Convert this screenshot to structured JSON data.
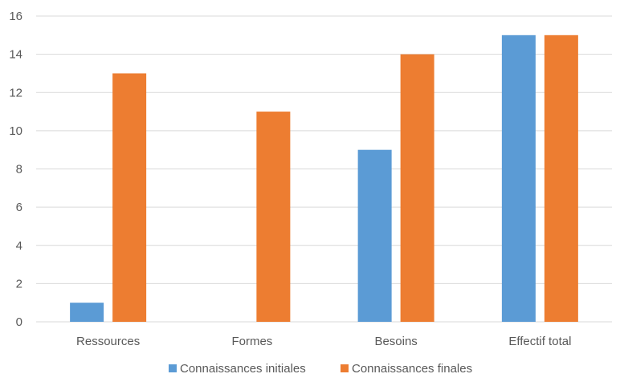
{
  "chart_data": {
    "type": "bar",
    "title": "",
    "xlabel": "",
    "ylabel": "",
    "categories": [
      "Ressources",
      "Formes",
      "Besoins",
      "Effectif total"
    ],
    "series": [
      {
        "name": "Connaissances initiales",
        "color": "#5B9BD5",
        "values": [
          1,
          0,
          9,
          15
        ]
      },
      {
        "name": "Connaissances finales",
        "color": "#ED7D31",
        "values": [
          13,
          11,
          14,
          15
        ]
      }
    ],
    "ylim": [
      0,
      16
    ],
    "yticks": [
      0,
      2,
      4,
      6,
      8,
      10,
      12,
      14,
      16
    ],
    "grid": true,
    "legend": "bottom-center",
    "gridline_color": "#D9D9D9"
  }
}
